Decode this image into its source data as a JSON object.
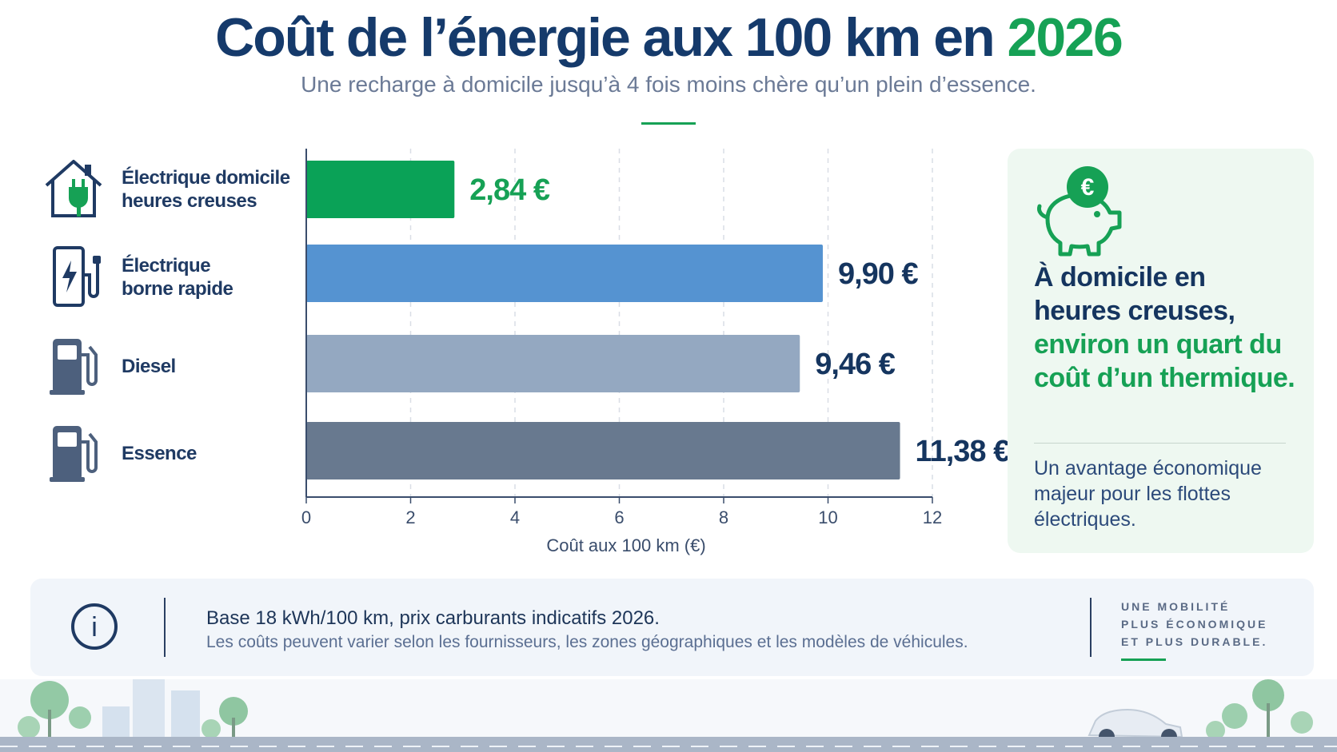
{
  "header": {
    "title_main": "Coût de l’énergie aux 100 km en",
    "title_year": "2026",
    "subtitle": "Une recharge à domicile jusqu’à 4 fois moins chère qu’un plein d’essence."
  },
  "categories": [
    {
      "line1": "Électrique domicile",
      "line2": "heures creuses",
      "icon": "house-plug-icon"
    },
    {
      "line1": "Électrique",
      "line2": "borne rapide",
      "icon": "charging-station-icon"
    },
    {
      "line1": "Diesel",
      "line2": "",
      "icon": "fuel-pump-icon"
    },
    {
      "line1": "Essence",
      "line2": "",
      "icon": "fuel-pump-icon"
    }
  ],
  "chart_data": {
    "type": "bar",
    "orientation": "horizontal",
    "categories": [
      "Électrique domicile heures creuses",
      "Électrique borne rapide",
      "Diesel",
      "Essence"
    ],
    "values": [
      2.84,
      9.9,
      9.46,
      11.38
    ],
    "value_labels": [
      "2,84 €",
      "9,90 €",
      "9,46 €",
      "11,38 €"
    ],
    "colors": [
      "#0aa257",
      "#5593d1",
      "#94a8c1",
      "#68798f"
    ],
    "label_colors": [
      "#16a155",
      "#15355f",
      "#15355f",
      "#15355f"
    ],
    "xlabel": "Coût aux 100 km (€)",
    "xlim": [
      0,
      12
    ],
    "xticks": [
      "0",
      "2",
      "4",
      "6",
      "8",
      "10",
      "12"
    ],
    "grid": true
  },
  "side_card": {
    "head_dark": "À domicile en heures creuses,",
    "head_green": "environ un quart du coût d’un thermique.",
    "body": "Un avantage économique majeur pour les flottes électriques.",
    "icon": "piggy-bank-euro-icon",
    "icon_glyph": "€"
  },
  "info": {
    "line1": "Base 18 kWh/100 km, prix carburants indicatifs 2026.",
    "line2": "Les coûts peuvent varier selon les fournisseurs, les zones géographiques et les modèles de véhicules.",
    "icon": "info-icon",
    "icon_glyph": "i"
  },
  "tagline": [
    "UNE MOBILITÉ",
    "PLUS ÉCONOMIQUE",
    "ET PLUS DURABLE."
  ],
  "colors": {
    "brand_dark": "#153a6b",
    "brand_green": "#16a155"
  }
}
